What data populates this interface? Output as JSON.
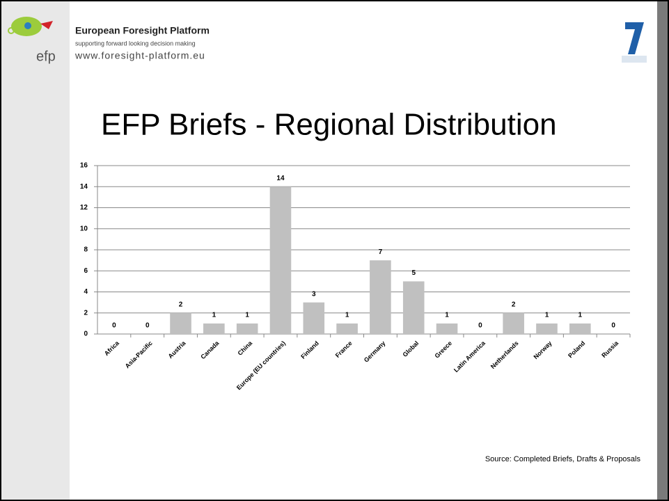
{
  "header": {
    "org": "European Foresight Platform",
    "tagline": "supporting forward looking decision making",
    "url": "www.foresight-platform.eu",
    "logo_text": "efp"
  },
  "chart_data": {
    "type": "bar",
    "title": "EFP Briefs - Regional Distribution",
    "categories": [
      "Africa",
      "Asia-Pacific",
      "Austria",
      "Canada",
      "China",
      "Europe (EU countries)",
      "Finland",
      "France",
      "Germany",
      "Global",
      "Greece",
      "Latin America",
      "Netherlands",
      "Norway",
      "Poland",
      "Russia"
    ],
    "values": [
      0,
      0,
      2,
      1,
      1,
      14,
      3,
      1,
      7,
      5,
      1,
      0,
      2,
      1,
      1,
      0
    ],
    "color": "#c0c0c0",
    "ylim": [
      0,
      16
    ],
    "yticks": [
      0,
      2,
      4,
      6,
      8,
      10,
      12,
      14,
      16
    ],
    "grid": true,
    "source": "Source: Completed Briefs, Drafts & Proposals"
  }
}
